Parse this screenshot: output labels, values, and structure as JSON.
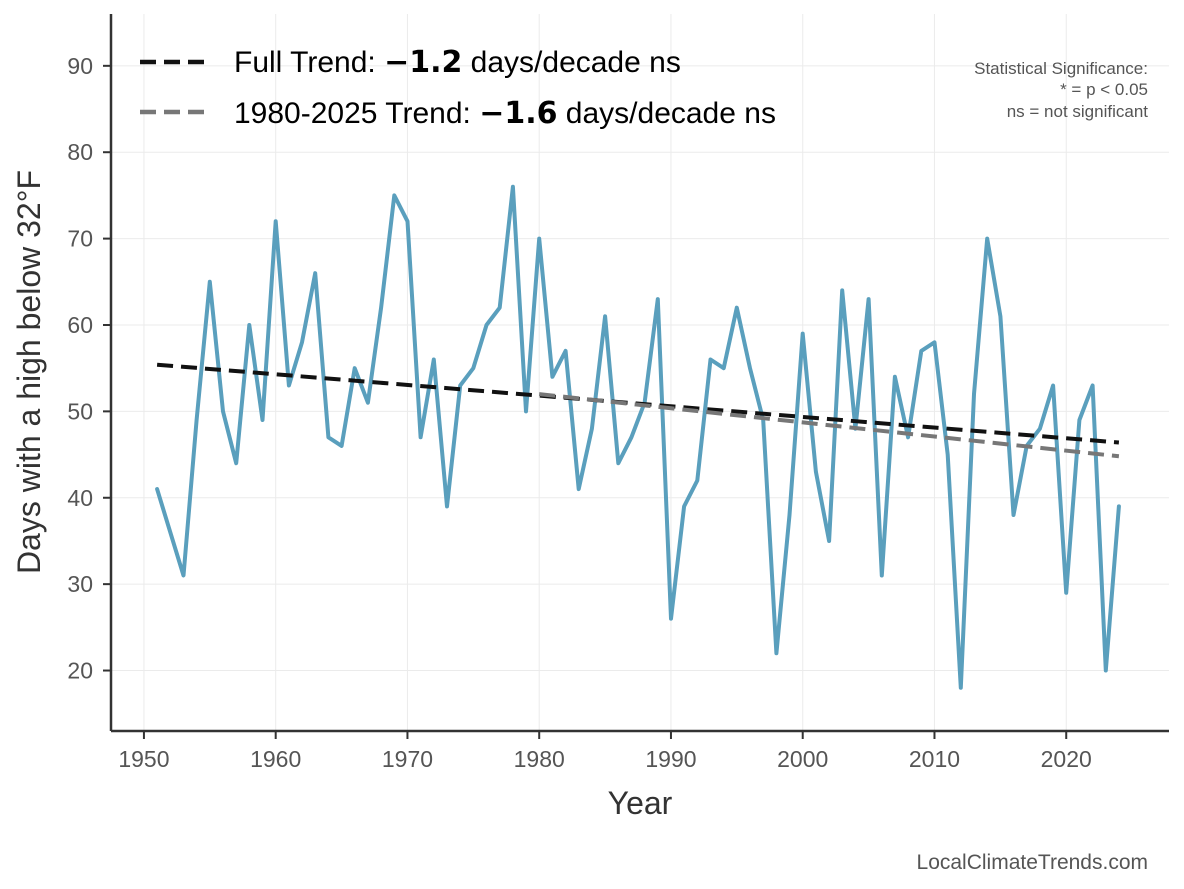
{
  "chart_data": {
    "type": "line",
    "xlabel": "Year",
    "ylabel": "Days with a high below 32°F",
    "xlim": [
      1947.5,
      2027.8
    ],
    "ylim": [
      13,
      96
    ],
    "x_ticks": [
      1950,
      1960,
      1970,
      1980,
      1990,
      2000,
      2010,
      2020
    ],
    "y_ticks": [
      20,
      30,
      40,
      50,
      60,
      70,
      80,
      90
    ],
    "grid": true,
    "legend_position": "top-left",
    "series": [
      {
        "color": "#5a9fbd",
        "x": [
          1951,
          1952,
          1953,
          1954,
          1955,
          1956,
          1957,
          1958,
          1959,
          1960,
          1961,
          1962,
          1963,
          1964,
          1965,
          1966,
          1967,
          1968,
          1969,
          1970,
          1971,
          1972,
          1973,
          1974,
          1975,
          1976,
          1977,
          1978,
          1979,
          1980,
          1981,
          1982,
          1983,
          1984,
          1985,
          1986,
          1987,
          1988,
          1989,
          1990,
          1991,
          1992,
          1993,
          1994,
          1995,
          1996,
          1997,
          1998,
          1999,
          2000,
          2001,
          2002,
          2003,
          2004,
          2005,
          2006,
          2007,
          2008,
          2009,
          2010,
          2011,
          2012,
          2013,
          2014,
          2015,
          2016,
          2017,
          2018,
          2019,
          2020,
          2021,
          2022,
          2023,
          2024
        ],
        "y": [
          41,
          36,
          31,
          49,
          65,
          50,
          44,
          60,
          49,
          72,
          53,
          58,
          66,
          47,
          46,
          55,
          51,
          62,
          75,
          72,
          47,
          56,
          39,
          53,
          55,
          60,
          62,
          76,
          50,
          70,
          54,
          57,
          41,
          48,
          61,
          44,
          47,
          51,
          63,
          26,
          39,
          42,
          56,
          55,
          62,
          55,
          49,
          22,
          38,
          59,
          43,
          35,
          64,
          48,
          63,
          31,
          54,
          47,
          57,
          58,
          45,
          18,
          52,
          70,
          61,
          38,
          46,
          48,
          53,
          29,
          49,
          53,
          20,
          39
        ]
      },
      {
        "name": "Full Trend",
        "color": "#111111",
        "dash": "dashed",
        "x": [
          1951,
          2024
        ],
        "y": [
          55.4,
          46.4
        ]
      },
      {
        "name": "1980-2025 Trend",
        "color": "#777777",
        "dash": "dashed",
        "x": [
          1980,
          2024
        ],
        "y": [
          52.0,
          44.8
        ]
      }
    ],
    "legend": [
      {
        "prefix": "Full Trend: ",
        "value": "−1.2",
        "suffix": " days/decade ns",
        "color": "#111111"
      },
      {
        "prefix": "1980-2025 Trend: ",
        "value": "−1.6",
        "suffix": " days/decade ns",
        "color": "#777777"
      }
    ],
    "annotations": {
      "significance": [
        "Statistical Significance:",
        "* = p < 0.05",
        "ns = not significant"
      ],
      "credit": "LocalClimateTrends.com"
    }
  }
}
